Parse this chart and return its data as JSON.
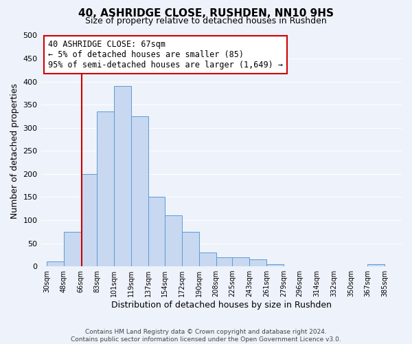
{
  "title": "40, ASHRIDGE CLOSE, RUSHDEN, NN10 9HS",
  "subtitle": "Size of property relative to detached houses in Rushden",
  "xlabel": "Distribution of detached houses by size in Rushden",
  "ylabel": "Number of detached properties",
  "bar_left_edges": [
    30,
    48,
    66,
    83,
    101,
    119,
    137,
    154,
    172,
    190,
    208,
    225,
    243,
    261,
    279,
    296,
    314,
    332,
    350,
    367
  ],
  "bar_widths": [
    18,
    18,
    17,
    18,
    18,
    18,
    17,
    18,
    18,
    18,
    17,
    18,
    18,
    18,
    17,
    18,
    18,
    18,
    17,
    18
  ],
  "bar_heights": [
    10,
    75,
    200,
    335,
    390,
    325,
    150,
    110,
    75,
    30,
    20,
    20,
    15,
    5,
    0,
    0,
    0,
    0,
    0,
    5
  ],
  "bar_color": "#c8d8f0",
  "bar_edge_color": "#5b9bd5",
  "tick_labels": [
    "30sqm",
    "48sqm",
    "66sqm",
    "83sqm",
    "101sqm",
    "119sqm",
    "137sqm",
    "154sqm",
    "172sqm",
    "190sqm",
    "208sqm",
    "225sqm",
    "243sqm",
    "261sqm",
    "279sqm",
    "296sqm",
    "314sqm",
    "332sqm",
    "350sqm",
    "367sqm",
    "385sqm"
  ],
  "tick_positions": [
    30,
    48,
    66,
    83,
    101,
    119,
    137,
    154,
    172,
    190,
    208,
    225,
    243,
    261,
    279,
    296,
    314,
    332,
    350,
    367,
    385
  ],
  "ylim": [
    0,
    500
  ],
  "yticks": [
    0,
    50,
    100,
    150,
    200,
    250,
    300,
    350,
    400,
    450,
    500
  ],
  "vline_x": 67,
  "vline_color": "#cc0000",
  "annotation_title": "40 ASHRIDGE CLOSE: 67sqm",
  "annotation_line1": "← 5% of detached houses are smaller (85)",
  "annotation_line2": "95% of semi-detached houses are larger (1,649) →",
  "footer1": "Contains HM Land Registry data © Crown copyright and database right 2024.",
  "footer2": "Contains public sector information licensed under the Open Government Licence v3.0.",
  "background_color": "#eef2fa",
  "grid_color": "#ffffff"
}
